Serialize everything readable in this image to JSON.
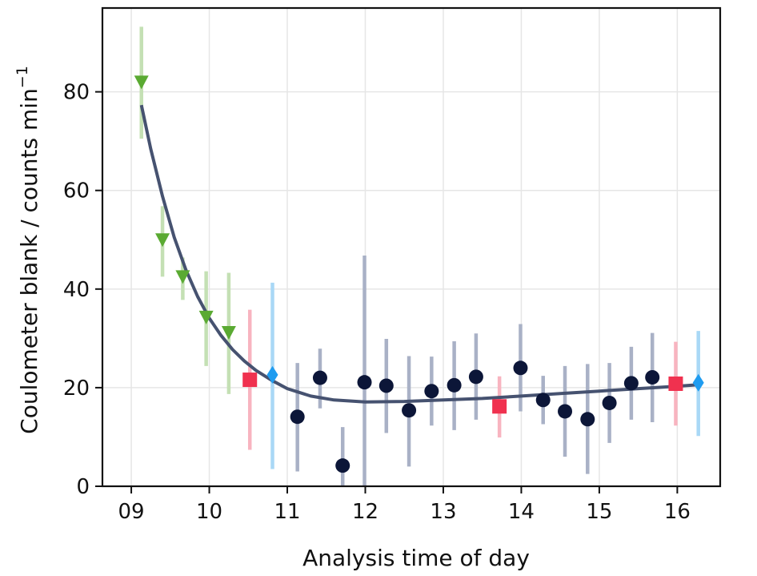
{
  "chart_data": {
    "type": "scatter",
    "xlabel": "Analysis time of day",
    "ylabel_main": "Coulometer blank / counts min",
    "ylabel_sup": "−1",
    "xlim": [
      8.63,
      16.55
    ],
    "ylim": [
      0,
      97
    ],
    "x_ticks": [
      9,
      10,
      11,
      12,
      13,
      14,
      15,
      16
    ],
    "x_tick_labels": [
      "09",
      "10",
      "11",
      "12",
      "13",
      "14",
      "15",
      "16"
    ],
    "y_ticks": [
      0,
      20,
      40,
      60,
      80
    ],
    "y_tick_labels": [
      "0",
      "20",
      "40",
      "60",
      "80"
    ],
    "grid": true,
    "colors": {
      "green": "#5aaa32",
      "green_err": "#c4e0b4",
      "red": "#f0314f",
      "red_err": "#f8b4c0",
      "blue": "#1f9cf0",
      "blue_err": "#a9d8f6",
      "navy": "#0c1638",
      "navy_err": "#a9b1c6",
      "fit": "#465270",
      "grid": "#e6e6e6"
    },
    "series": [
      {
        "name": "green",
        "marker": "triangle-down",
        "points": [
          {
            "x": 9.13,
            "y": 82,
            "err_lo": 70.5,
            "err_hi": 93.2
          },
          {
            "x": 9.4,
            "y": 50,
            "err_lo": 42.5,
            "err_hi": 56.8
          },
          {
            "x": 9.66,
            "y": 42.5,
            "err_lo": 37.8,
            "err_hi": 46.4
          },
          {
            "x": 9.96,
            "y": 34.3,
            "err_lo": 24.4,
            "err_hi": 43.6
          },
          {
            "x": 10.25,
            "y": 31.2,
            "err_lo": 18.7,
            "err_hi": 43.3
          }
        ]
      },
      {
        "name": "red",
        "marker": "square",
        "points": [
          {
            "x": 10.52,
            "y": 21.6,
            "err_lo": 7.4,
            "err_hi": 35.8
          },
          {
            "x": 13.72,
            "y": 16.2,
            "err_lo": 9.9,
            "err_hi": 22.3
          },
          {
            "x": 15.98,
            "y": 20.8,
            "err_lo": 12.3,
            "err_hi": 29.3
          }
        ]
      },
      {
        "name": "blue",
        "marker": "diamond",
        "points": [
          {
            "x": 10.81,
            "y": 22.6,
            "err_lo": 3.5,
            "err_hi": 41.3
          },
          {
            "x": 16.27,
            "y": 21.0,
            "err_lo": 10.2,
            "err_hi": 31.5
          }
        ]
      },
      {
        "name": "navy",
        "marker": "circle",
        "points": [
          {
            "x": 11.13,
            "y": 14.1,
            "err_lo": 3.0,
            "err_hi": 25.0
          },
          {
            "x": 11.42,
            "y": 22.0,
            "err_lo": 15.8,
            "err_hi": 27.9
          },
          {
            "x": 11.71,
            "y": 4.2,
            "err_lo": 0.0,
            "err_hi": 12.0
          },
          {
            "x": 11.99,
            "y": 21.1,
            "err_lo": 0.0,
            "err_hi": 46.8
          },
          {
            "x": 12.27,
            "y": 20.4,
            "err_lo": 10.8,
            "err_hi": 29.9
          },
          {
            "x": 12.56,
            "y": 15.4,
            "err_lo": 4.0,
            "err_hi": 26.4
          },
          {
            "x": 12.85,
            "y": 19.3,
            "err_lo": 12.3,
            "err_hi": 26.3
          },
          {
            "x": 13.14,
            "y": 20.5,
            "err_lo": 11.4,
            "err_hi": 29.4
          },
          {
            "x": 13.42,
            "y": 22.2,
            "err_lo": 13.5,
            "err_hi": 31.0
          },
          {
            "x": 13.99,
            "y": 24.0,
            "err_lo": 15.2,
            "err_hi": 32.9
          },
          {
            "x": 14.28,
            "y": 17.5,
            "err_lo": 12.6,
            "err_hi": 22.4
          },
          {
            "x": 14.56,
            "y": 15.2,
            "err_lo": 6.0,
            "err_hi": 24.4
          },
          {
            "x": 14.85,
            "y": 13.6,
            "err_lo": 2.5,
            "err_hi": 24.8
          },
          {
            "x": 15.13,
            "y": 16.9,
            "err_lo": 8.8,
            "err_hi": 25.0
          },
          {
            "x": 15.41,
            "y": 20.9,
            "err_lo": 13.5,
            "err_hi": 28.3
          },
          {
            "x": 15.68,
            "y": 22.1,
            "err_lo": 13.0,
            "err_hi": 31.1
          }
        ]
      }
    ],
    "fit_curve": {
      "x": [
        9.13,
        9.25,
        9.4,
        9.55,
        9.7,
        9.85,
        10.0,
        10.15,
        10.3,
        10.45,
        10.6,
        10.8,
        11.0,
        11.3,
        11.6,
        12.0,
        12.5,
        13.0,
        13.5,
        14.0,
        14.5,
        15.0,
        15.5,
        16.0,
        16.27
      ],
      "y": [
        77.3,
        68.4,
        58.8,
        50.5,
        43.9,
        38.5,
        34.1,
        30.6,
        27.7,
        25.4,
        23.5,
        21.5,
        19.8,
        18.3,
        17.5,
        17.1,
        17.2,
        17.5,
        17.8,
        18.3,
        18.8,
        19.3,
        19.8,
        20.3,
        20.6
      ]
    }
  }
}
